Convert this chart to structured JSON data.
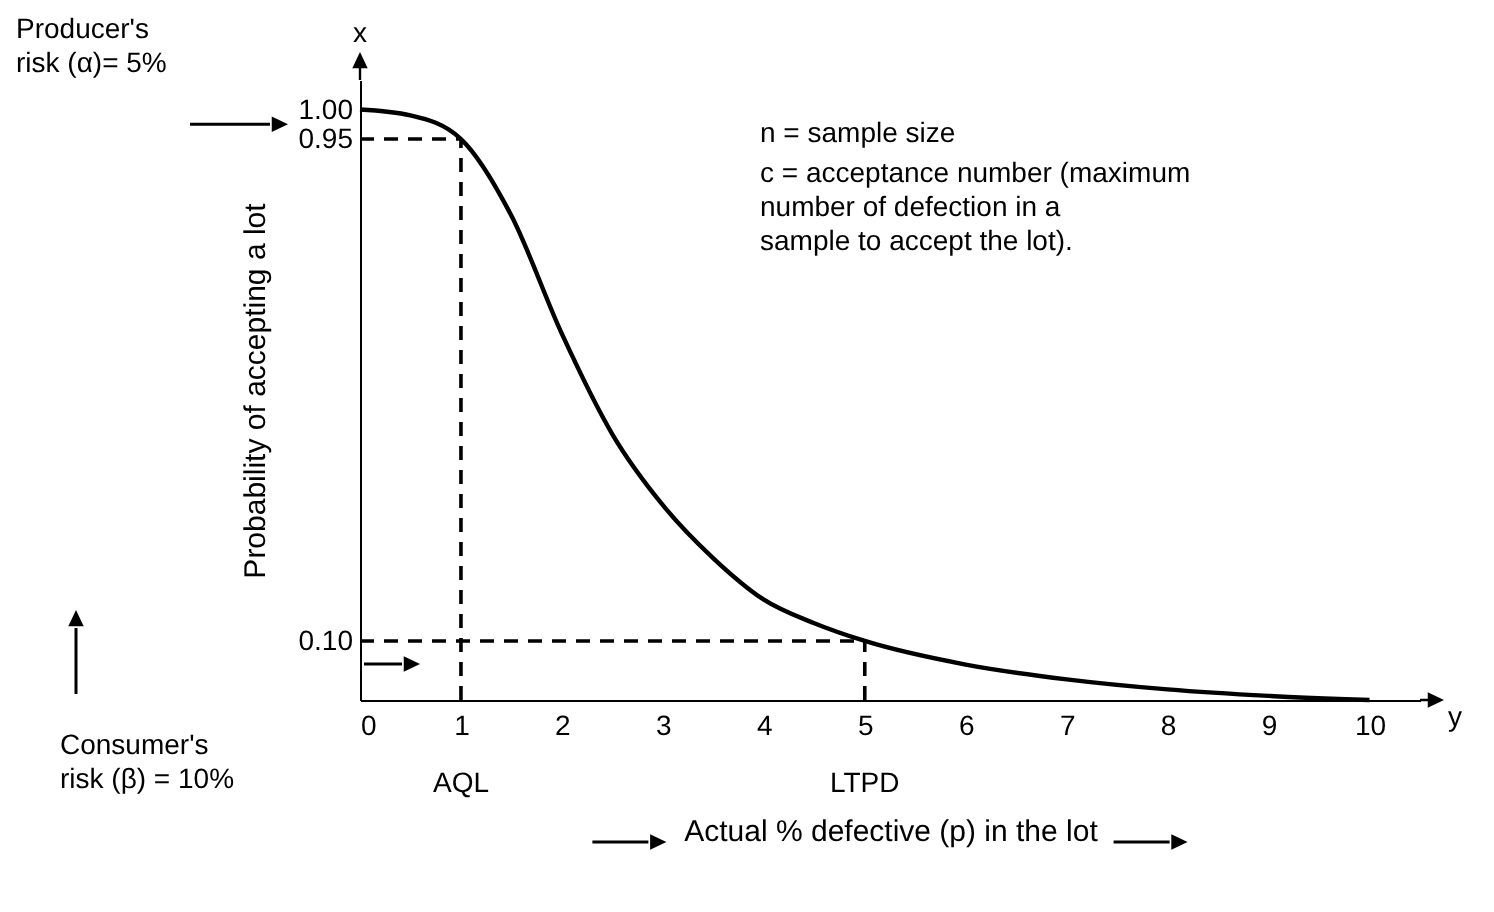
{
  "chart_data": {
    "type": "line",
    "xlabel": "Actual % defective (p) in the lot",
    "ylabel": "Probability of accepting a lot",
    "x": [
      0,
      0.5,
      1,
      1.5,
      2,
      2.5,
      3,
      3.5,
      4,
      4.5,
      5,
      6,
      7,
      8,
      9,
      10
    ],
    "series": [
      {
        "color": "#000000",
        "values": [
          1.0,
          0.99,
          0.95,
          0.82,
          0.62,
          0.45,
          0.33,
          0.24,
          0.17,
          0.13,
          0.1,
          0.06,
          0.035,
          0.018,
          0.007,
          0.0
        ]
      }
    ],
    "xlim": [
      0,
      10.5
    ],
    "xticks": [
      0,
      1,
      2,
      3,
      4,
      5,
      6,
      7,
      8,
      9,
      10
    ],
    "ylim": [
      0,
      1.05
    ],
    "yticks": [
      {
        "value": 0.1,
        "label": "0.10"
      },
      {
        "value": 0.95,
        "label": "0.95"
      },
      {
        "value": 1,
        "label": "1.00"
      }
    ],
    "ref_lines": [
      {
        "axis": "x",
        "value": 1,
        "label": "AQL",
        "line_style": "dashed"
      },
      {
        "axis": "x",
        "value": 5,
        "label": "LTPD",
        "line_style": "dashed"
      },
      {
        "axis": "y",
        "value": 0.95,
        "line_style": "dashed"
      },
      {
        "axis": "y",
        "value": 0.1,
        "line_style": "dashed"
      }
    ],
    "annotations": [
      "x",
      "y",
      "n = sample size",
      "c = acceptance number (maximum\n     number of defection in a\n     sample to accept the lot).",
      "Producer's\nrisk (α)= 5%",
      "Consumer's\nrisk (β) = 10%"
    ],
    "grid": false,
    "marker": "none",
    "line_style": "solid"
  }
}
